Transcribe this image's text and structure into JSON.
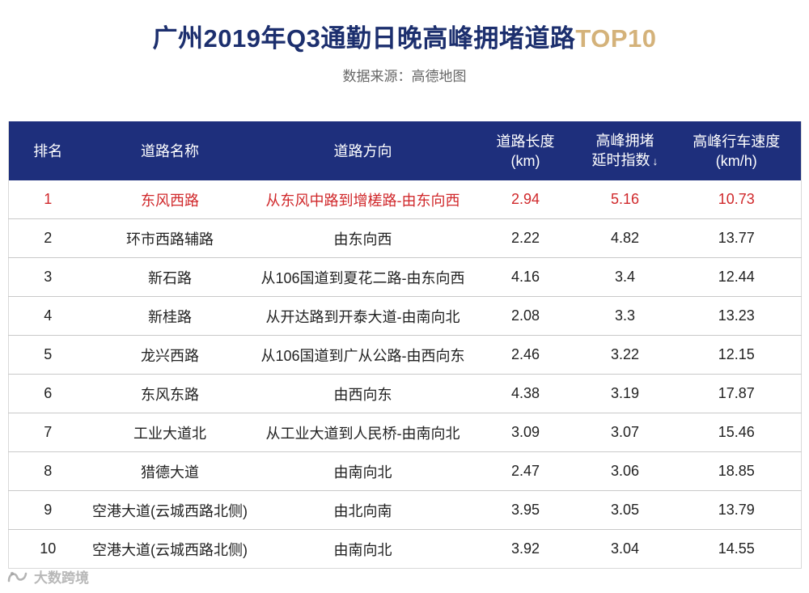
{
  "header": {
    "title_main": "广州2019年Q3通勤日晚高峰拥堵道路",
    "title_highlight": "TOP10",
    "source": "数据来源：高德地图"
  },
  "table": {
    "columns": {
      "rank": "排名",
      "road_name": "道路名称",
      "direction": "道路方向",
      "length_line1": "道路长度",
      "length_line2": "(km)",
      "delay_line1": "高峰拥堵",
      "delay_line2": "延时指数",
      "sort_arrow": "↓",
      "speed_line1": "高峰行车速度",
      "speed_line2": "(km/h)"
    },
    "rows": [
      {
        "rank": "1",
        "road": "东风西路",
        "direction": "从东风中路到增槎路-由东向西",
        "length": "2.94",
        "delay": "5.16",
        "speed": "10.73"
      },
      {
        "rank": "2",
        "road": "环市西路辅路",
        "direction": "由东向西",
        "length": "2.22",
        "delay": "4.82",
        "speed": "13.77"
      },
      {
        "rank": "3",
        "road": "新石路",
        "direction": "从106国道到夏花二路-由东向西",
        "length": "4.16",
        "delay": "3.4",
        "speed": "12.44"
      },
      {
        "rank": "4",
        "road": "新桂路",
        "direction": "从开达路到开泰大道-由南向北",
        "length": "2.08",
        "delay": "3.3",
        "speed": "13.23"
      },
      {
        "rank": "5",
        "road": "龙兴西路",
        "direction": "从106国道到广从公路-由西向东",
        "length": "2.46",
        "delay": "3.22",
        "speed": "12.15"
      },
      {
        "rank": "6",
        "road": "东风东路",
        "direction": "由西向东",
        "length": "4.38",
        "delay": "3.19",
        "speed": "17.87"
      },
      {
        "rank": "7",
        "road": "工业大道北",
        "direction": "从工业大道到人民桥-由南向北",
        "length": "3.09",
        "delay": "3.07",
        "speed": "15.46"
      },
      {
        "rank": "8",
        "road": "猎德大道",
        "direction": "由南向北",
        "length": "2.47",
        "delay": "3.06",
        "speed": "18.85"
      },
      {
        "rank": "9",
        "road": "空港大道(云城西路北侧)",
        "direction": "由北向南",
        "length": "3.95",
        "delay": "3.05",
        "speed": "13.79"
      },
      {
        "rank": "10",
        "road": "空港大道(云城西路北侧)",
        "direction": "由南向北",
        "length": "3.92",
        "delay": "3.04",
        "speed": "14.55"
      }
    ]
  },
  "watermark": {
    "text": "大数跨境",
    "logo_icon": "brand-logo-icon"
  },
  "colors": {
    "header_bg": "#1e2f7c",
    "title": "#1c2f6e",
    "title_highlight": "#d4b27a",
    "top_row_text": "#d0282b"
  }
}
